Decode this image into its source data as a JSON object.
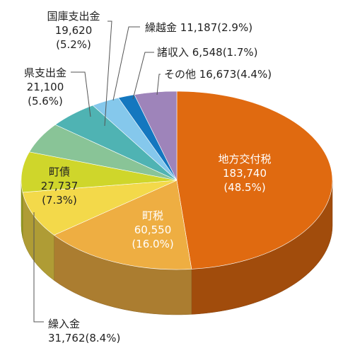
{
  "chart_data": {
    "type": "pie",
    "title": "",
    "unit": "",
    "slices": [
      {
        "name": "地方交付税",
        "value": 183740,
        "value_label": "183,740",
        "percent_label": "(48.5%)",
        "color": "#e06a10"
      },
      {
        "name": "町税",
        "value": 60550,
        "value_label": "60,550",
        "percent_label": "(16.0%)",
        "color": "#eeae42"
      },
      {
        "name": "繰入金",
        "value": 31762,
        "value_label": "31,762",
        "percent_label": "(8.4%)",
        "color": "#f3d94a"
      },
      {
        "name": "町債",
        "value": 27737,
        "value_label": "27,737",
        "percent_label": "(7.3%)",
        "color": "#cfd62b"
      },
      {
        "name": "県支出金",
        "value": 21100,
        "value_label": "21,100",
        "percent_label": "(5.6%)",
        "color": "#89c497"
      },
      {
        "name": "国庫支出金",
        "value": 19620,
        "value_label": "19,620",
        "percent_label": "(5.2%)",
        "color": "#4fb3b3"
      },
      {
        "name": "繰越金",
        "value": 11187,
        "value_label": "11,187",
        "percent_label": "(2.9%)",
        "color": "#85c8ec"
      },
      {
        "name": "諸収入",
        "value": 6548,
        "value_label": "6,548",
        "percent_label": "(1.7%)",
        "color": "#1477bf"
      },
      {
        "name": "その他",
        "value": 16673,
        "value_label": "16,673",
        "percent_label": "(4.4%)",
        "color": "#9e84ba"
      }
    ]
  }
}
